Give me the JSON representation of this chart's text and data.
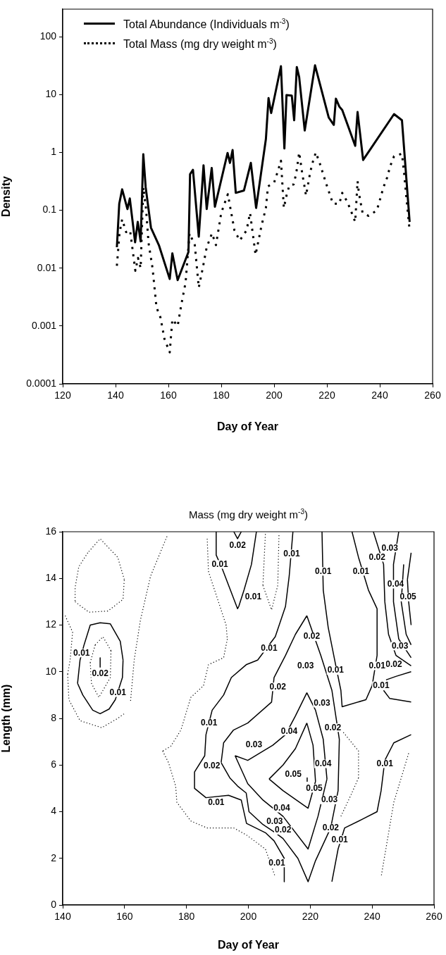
{
  "chart_data": [
    {
      "type": "line",
      "xlabel": "Day of Year",
      "ylabel": "Density",
      "log": "y",
      "xlim": [
        120,
        260
      ],
      "xticks": [
        120,
        140,
        160,
        180,
        200,
        220,
        240,
        260
      ],
      "ylim": [
        0.0001,
        300
      ],
      "yticks": [
        0.0001,
        0.001,
        0.01,
        0.1,
        1,
        10,
        100
      ],
      "grid": false,
      "legend": "top left",
      "marker": "none",
      "series": [
        {
          "name": "Total Abundance (Individuals m$^{-3}$)",
          "color": "#000000",
          "line_style": "solid",
          "x": [
            140.5,
            141.4,
            142.5,
            144.5,
            145.4,
            147.4,
            148.4,
            149.5,
            150.5,
            151.4,
            153.4,
            156.4,
            160.5,
            161.5,
            163.5,
            167.6,
            168.2,
            169.3,
            171.5,
            173.3,
            174.5,
            176.4,
            177.6,
            182.4,
            183.3,
            184.3,
            185.5,
            188.6,
            191.2,
            193.2,
            196.9,
            197.9,
            198.9,
            202.6,
            203.9,
            204.7,
            206.7,
            207.6,
            208.6,
            209.5,
            211.6,
            215.5,
            220.7,
            222.6,
            223.4,
            224.7,
            225.8,
            230.7,
            231.6,
            233.7,
            245.4,
            248.4,
            251.3
          ],
          "values": [
            0.023,
            0.13,
            0.23,
            0.105,
            0.16,
            0.028,
            0.063,
            0.029,
            0.93,
            0.25,
            0.05,
            0.025,
            0.0065,
            0.018,
            0.0062,
            0.019,
            0.42,
            0.5,
            0.035,
            0.6,
            0.105,
            0.54,
            0.115,
            0.98,
            0.66,
            1.1,
            0.2,
            0.22,
            0.66,
            0.11,
            1.7,
            8.7,
            4.8,
            31,
            1.17,
            9.8,
            9.6,
            3.6,
            30,
            20,
            2.4,
            32,
            4,
            3,
            8.5,
            6.2,
            5.4,
            1.3,
            5,
            0.74,
            4.6,
            3.6,
            0.063
          ]
        },
        {
          "name": "Total Mass (mg dry weight m$^{-3}$)",
          "color": "#000000",
          "line_style": "dotted",
          "x": [
            140.5,
            141.5,
            142.5,
            144,
            145.5,
            146.5,
            147.5,
            148.5,
            149.5,
            150.5,
            151.5,
            152.5,
            154,
            155.5,
            157,
            158.5,
            160.5,
            161.5,
            163.5,
            165,
            166.5,
            168,
            170,
            171.5,
            173,
            174.5,
            176.5,
            178,
            180,
            182.5,
            184,
            185,
            187,
            189.6,
            190.9,
            193,
            195.2,
            196.9,
            197.7,
            200,
            201.4,
            202.6,
            203.7,
            204.7,
            205.8,
            207.4,
            208.4,
            209.5,
            210.7,
            212.1,
            213.5,
            214.4,
            215.8,
            217.2,
            219.7,
            220.9,
            222.3,
            224.7,
            225.8,
            227.7,
            229.4,
            230.7,
            231.6,
            232.1,
            232.7,
            233.5,
            235.8,
            238.9,
            240.2,
            241.4,
            242.8,
            243.9,
            245.4,
            248.4,
            249.3,
            250,
            251.2
          ],
          "values": [
            0.011,
            0.04,
            0.07,
            0.042,
            0.045,
            0.02,
            0.009,
            0.015,
            0.01,
            0.25,
            0.11,
            0.027,
            0.01,
            0.0021,
            0.0014,
            0.0006,
            0.00035,
            0.0013,
            0.001,
            0.0025,
            0.0056,
            0.04,
            0.025,
            0.0046,
            0.01,
            0.023,
            0.04,
            0.025,
            0.09,
            0.19,
            0.08,
            0.045,
            0.03,
            0.045,
            0.09,
            0.017,
            0.053,
            0.11,
            0.26,
            0.3,
            0.47,
            0.72,
            0.11,
            0.18,
            0.27,
            0.28,
            0.44,
            1.0,
            0.42,
            0.18,
            0.41,
            0.63,
            1.0,
            0.67,
            0.29,
            0.2,
            0.13,
            0.13,
            0.2,
            0.14,
            0.09,
            0.063,
            0.32,
            0.2,
            0.14,
            0.09,
            0.08,
            0.1,
            0.16,
            0.25,
            0.37,
            0.57,
            0.86,
            0.95,
            0.4,
            0.18,
            0.05
          ]
        }
      ]
    },
    {
      "type": "line",
      "title": "Mass (mg dry weight m$^{-3}$)",
      "xlabel": "Day of Year",
      "ylabel": "Length (mm)",
      "xlim": [
        140,
        260
      ],
      "xticks": [
        140,
        160,
        180,
        200,
        220,
        240,
        260
      ],
      "ylim": [
        0,
        16
      ],
      "yticks": [
        0,
        2,
        4,
        6,
        8,
        10,
        12,
        14,
        16
      ],
      "grid": false,
      "marker": "none",
      "series": [
        {
          "color": "#000000",
          "line_style": "solid",
          "x": [
            144.8,
            145.6,
            146.9,
            148.9,
            152.1,
            155.4,
            158.6,
            159.5,
            null,
            159.5,
            159.3,
            157,
            155,
            152.1,
            149.7,
            146.5,
            144.8,
            null,
            152.1,
            152.1,
            null,
            214.4,
            213.2,
            212,
            208.7,
            203,
            199.3,
            194.5,
            192,
            188.3,
            186.3,
            185.9,
            182.6,
            182.6,
            null,
            182.6,
            186.3,
            193.6,
            197.7,
            199.4,
            205.5,
            208.3,
            211.6,
            211.6,
            null,
            189.6,
            189.6,
            191.6,
            196.5,
            196.9,
            198.6,
            201,
            202.6,
            null,
            195.3,
            196.5,
            197.7,
            null,
            223.8,
            224.2,
            225.8,
            228.2,
            229.9,
            230.3,
            238,
            240,
            241.6,
            241.6,
            null,
            241.6,
            238.8,
            235.6,
            233.5,
            null,
            243.7,
            245.7,
            252.6,
            null,
            244.5,
            247.7,
            252.6,
            null,
            252.6,
            247,
            244.1,
            242.9,
            241.6,
            237.2,
            231.1,
            229,
            227,
            null,
            218.9,
            215.2,
            212,
            208.3,
            207.5,
            199.8,
            195.2,
            192,
            191.2,
            null,
            191.2,
            194,
            196.5,
            199.3,
            200.2,
            204.7,
            208.7,
            211.2,
            216,
            219.3,
            221.7,
            226.6,
            229,
            229.4,
            null,
            229.4,
            227,
            223.4,
            218.9,
            null,
            218.9,
            215.2,
            212,
            207.9,
            199.8,
            195.7,
            null,
            195.7,
            199.8,
            204.7,
            211.2,
            219.3,
            222.5,
            225.4,
            null,
            225.4,
            224.2,
            221.7,
            218.9,
            null,
            218.9,
            215.2,
            211.2,
            206.7,
            null,
            206.7,
            211.2,
            219.3,
            221.7,
            null,
            221.7,
            220.9,
            218.9,
            null,
            219,
            219,
            null,
            240.4,
            243.7,
            244.1,
            245.3,
            247.7,
            252.6,
            null,
            248.6,
            246.9,
            246.9,
            null,
            246.9,
            248.6,
            252.6,
            null,
            250.2,
            249.4,
            null,
            249.4,
            251,
            252.6,
            null,
            252.6,
            251.4,
            null,
            251.4,
            251.8,
            252.6
          ],
          "values": [
            9.5,
            10.5,
            11.15,
            12.0,
            12.1,
            12.05,
            11.3,
            10.5,
            null,
            10.5,
            9.75,
            8.8,
            8.4,
            8.2,
            8.35,
            9.0,
            9.5,
            null,
            10.6,
            10.2,
            null,
            16,
            14.1,
            12.8,
            11.5,
            10.5,
            10.3,
            9.75,
            9.0,
            8.35,
            7.3,
            6.4,
            5.7,
            5.0,
            null,
            5.0,
            4.6,
            4.7,
            4.5,
            3.5,
            3.1,
            2.75,
            2.0,
            1.0,
            null,
            16,
            15,
            14.4,
            12.7,
            12.8,
            13.5,
            14.6,
            16,
            null,
            16,
            15.7,
            16,
            null,
            16,
            13.5,
            11.9,
            10.3,
            9.2,
            8.5,
            8.8,
            9.4,
            10.7,
            12.7,
            null,
            12.7,
            13.5,
            14.9,
            16,
            null,
            9.2,
            8.85,
            8.7,
            null,
            9.65,
            9.8,
            10.0,
            null,
            7.3,
            6.95,
            6.2,
            4.9,
            4.0,
            3.7,
            3.3,
            2.4,
            1.0,
            null,
            12.4,
            11.6,
            10.7,
            9.75,
            8.7,
            7.8,
            7.5,
            6.95,
            6.1,
            null,
            6.1,
            5.45,
            5.1,
            4.8,
            4.0,
            3.45,
            3.1,
            2.85,
            2.0,
            1.0,
            1.9,
            3.3,
            4.9,
            7.1,
            null,
            7.1,
            9.2,
            10.7,
            12.4,
            null,
            9.1,
            8.1,
            7.3,
            6.85,
            6.2,
            6.4,
            null,
            6.4,
            5.2,
            4.5,
            3.8,
            2.4,
            3.8,
            5.4,
            null,
            5.4,
            7.1,
            8.35,
            9.1,
            null,
            7.8,
            6.7,
            6.0,
            5.4,
            null,
            5.4,
            4.9,
            4.15,
            5.3,
            null,
            5.3,
            6.85,
            7.8,
            null,
            5.45,
            5.3,
            null,
            16,
            14.6,
            13.0,
            11.6,
            10.7,
            10.25,
            null,
            16,
            14.6,
            13.0,
            null,
            13.0,
            11.4,
            10.6,
            null,
            14.6,
            13.0,
            null,
            13.0,
            11.6,
            11.15,
            null,
            15.1,
            13.95,
            null,
            13.95,
            13.0,
            12.0
          ]
        },
        {
          "color": "#000000",
          "line_style": "dotted",
          "x": [
            150.5,
            148.9,
            null,
            148.9,
            149.3,
            151.7,
            155.4,
            155.6,
            null,
            155.6,
            153,
            150.5,
            null,
            140.8,
            143.2,
            null,
            143.2,
            142.4,
            141.6,
            null,
            141.6,
            142,
            145.6,
            152.6,
            157.8,
            159.9,
            null,
            148.1,
            145.2,
            144,
            144,
            null,
            144,
            148.5,
            154.6,
            159.5,
            159.9,
            null,
            159.9,
            157.8,
            152.1,
            148.1,
            null,
            173.7,
            168.4,
            165.1,
            163.1,
            161.9,
            null,
            186.7,
            187.1,
            192.8,
            193.2,
            null,
            193.2,
            192,
            187.1,
            185.5,
            181.4,
            178.2,
            174.9,
            172.3,
            null,
            172.3,
            174.2,
            176.5,
            176.9,
            181.4,
            186.7,
            195.3,
            199.4,
            205.5,
            208.7,
            null,
            205.5,
            204.7,
            null,
            204.7,
            207.5,
            209.5,
            209.9,
            null,
            251.8,
            247,
            242.9,
            null,
            230.7,
            235.6,
            235.6,
            null,
            235.6,
            233.1,
            229.9
          ],
          "values": [
            11.15,
            10.4,
            null,
            10.4,
            9.5,
            8.9,
            9.75,
            10.9,
            null,
            10.9,
            11.5,
            11.15,
            null,
            12.4,
            11.7,
            null,
            11.7,
            10.5,
            9.9,
            null,
            9.9,
            8.8,
            7.9,
            7.6,
            8.0,
            8.2,
            null,
            15.1,
            14.5,
            13.6,
            13.0,
            null,
            13.0,
            12.55,
            12.6,
            13.1,
            13.95,
            null,
            13.95,
            14.9,
            15.7,
            15.1,
            null,
            15.8,
            14.1,
            12.2,
            10.5,
            8.7,
            null,
            15.7,
            14.3,
            12.0,
            11.4,
            null,
            11.4,
            10.6,
            10.3,
            9.4,
            8.9,
            7.5,
            6.8,
            6.6,
            null,
            6.6,
            6.1,
            5.1,
            4.4,
            3.6,
            3.3,
            3.3,
            3.0,
            2.4,
            1.2,
            null,
            15.9,
            13.7,
            null,
            13.7,
            12.65,
            13.7,
            15.9,
            null,
            6.5,
            4.4,
            1.2,
            null,
            7.4,
            6.6,
            5.45,
            null,
            5.45,
            4.7,
            3.8
          ]
        }
      ],
      "annotations": [
        {
          "text": "0.01",
          "x": 146.1,
          "y": 10.8
        },
        {
          "text": "0.02",
          "x": 152.1,
          "y": 9.9
        },
        {
          "text": "0.01",
          "x": 157.8,
          "y": 9.1
        },
        {
          "text": "0.01",
          "x": 190.8,
          "y": 14.6
        },
        {
          "text": "0.02",
          "x": 196.5,
          "y": 15.4
        },
        {
          "text": "0.01",
          "x": 187.3,
          "y": 7.8
        },
        {
          "text": "0.02",
          "x": 188.2,
          "y": 5.95
        },
        {
          "text": "0.01",
          "x": 189.6,
          "y": 4.4
        },
        {
          "text": "0.01",
          "x": 201.6,
          "y": 13.2
        },
        {
          "text": "0.01",
          "x": 214,
          "y": 15.05
        },
        {
          "text": "0.01",
          "x": 224.2,
          "y": 14.3
        },
        {
          "text": "0.01",
          "x": 236.4,
          "y": 14.3
        },
        {
          "text": "0.02",
          "x": 241.6,
          "y": 14.9
        },
        {
          "text": "0.03",
          "x": 245.7,
          "y": 15.3
        },
        {
          "text": "0.04",
          "x": 247.6,
          "y": 13.75
        },
        {
          "text": "0.05",
          "x": 251.6,
          "y": 13.2
        },
        {
          "text": "0.03",
          "x": 249,
          "y": 11.1
        },
        {
          "text": "0.02",
          "x": 247,
          "y": 10.3
        },
        {
          "text": "0.01",
          "x": 241.6,
          "y": 10.25
        },
        {
          "text": "0.01",
          "x": 242.9,
          "y": 9.4
        },
        {
          "text": "0.01",
          "x": 206.7,
          "y": 11.0
        },
        {
          "text": "0.02",
          "x": 220.5,
          "y": 11.5
        },
        {
          "text": "0.03",
          "x": 218.5,
          "y": 10.25
        },
        {
          "text": "0.01",
          "x": 228.2,
          "y": 10.05
        },
        {
          "text": "0.02",
          "x": 209.5,
          "y": 9.35
        },
        {
          "text": "0.03",
          "x": 223.8,
          "y": 8.65
        },
        {
          "text": "0.04",
          "x": 213.2,
          "y": 7.45
        },
        {
          "text": "0.02",
          "x": 227.3,
          "y": 7.6
        },
        {
          "text": "0.03",
          "x": 201.8,
          "y": 6.85
        },
        {
          "text": "0.05",
          "x": 214.5,
          "y": 5.6
        },
        {
          "text": "0.04",
          "x": 224.2,
          "y": 6.05
        },
        {
          "text": "0.01",
          "x": 244.1,
          "y": 6.05
        },
        {
          "text": "0.05",
          "x": 221.3,
          "y": 5.0
        },
        {
          "text": "0.03",
          "x": 226.2,
          "y": 4.5
        },
        {
          "text": "0.04",
          "x": 210.8,
          "y": 4.15
        },
        {
          "text": "0.03",
          "x": 208.5,
          "y": 3.58
        },
        {
          "text": "0.02",
          "x": 211.2,
          "y": 3.2
        },
        {
          "text": "0.02",
          "x": 226.6,
          "y": 3.3
        },
        {
          "text": "0.01",
          "x": 229.5,
          "y": 2.8
        },
        {
          "text": "0.01",
          "x": 209.2,
          "y": 1.8
        }
      ]
    }
  ]
}
